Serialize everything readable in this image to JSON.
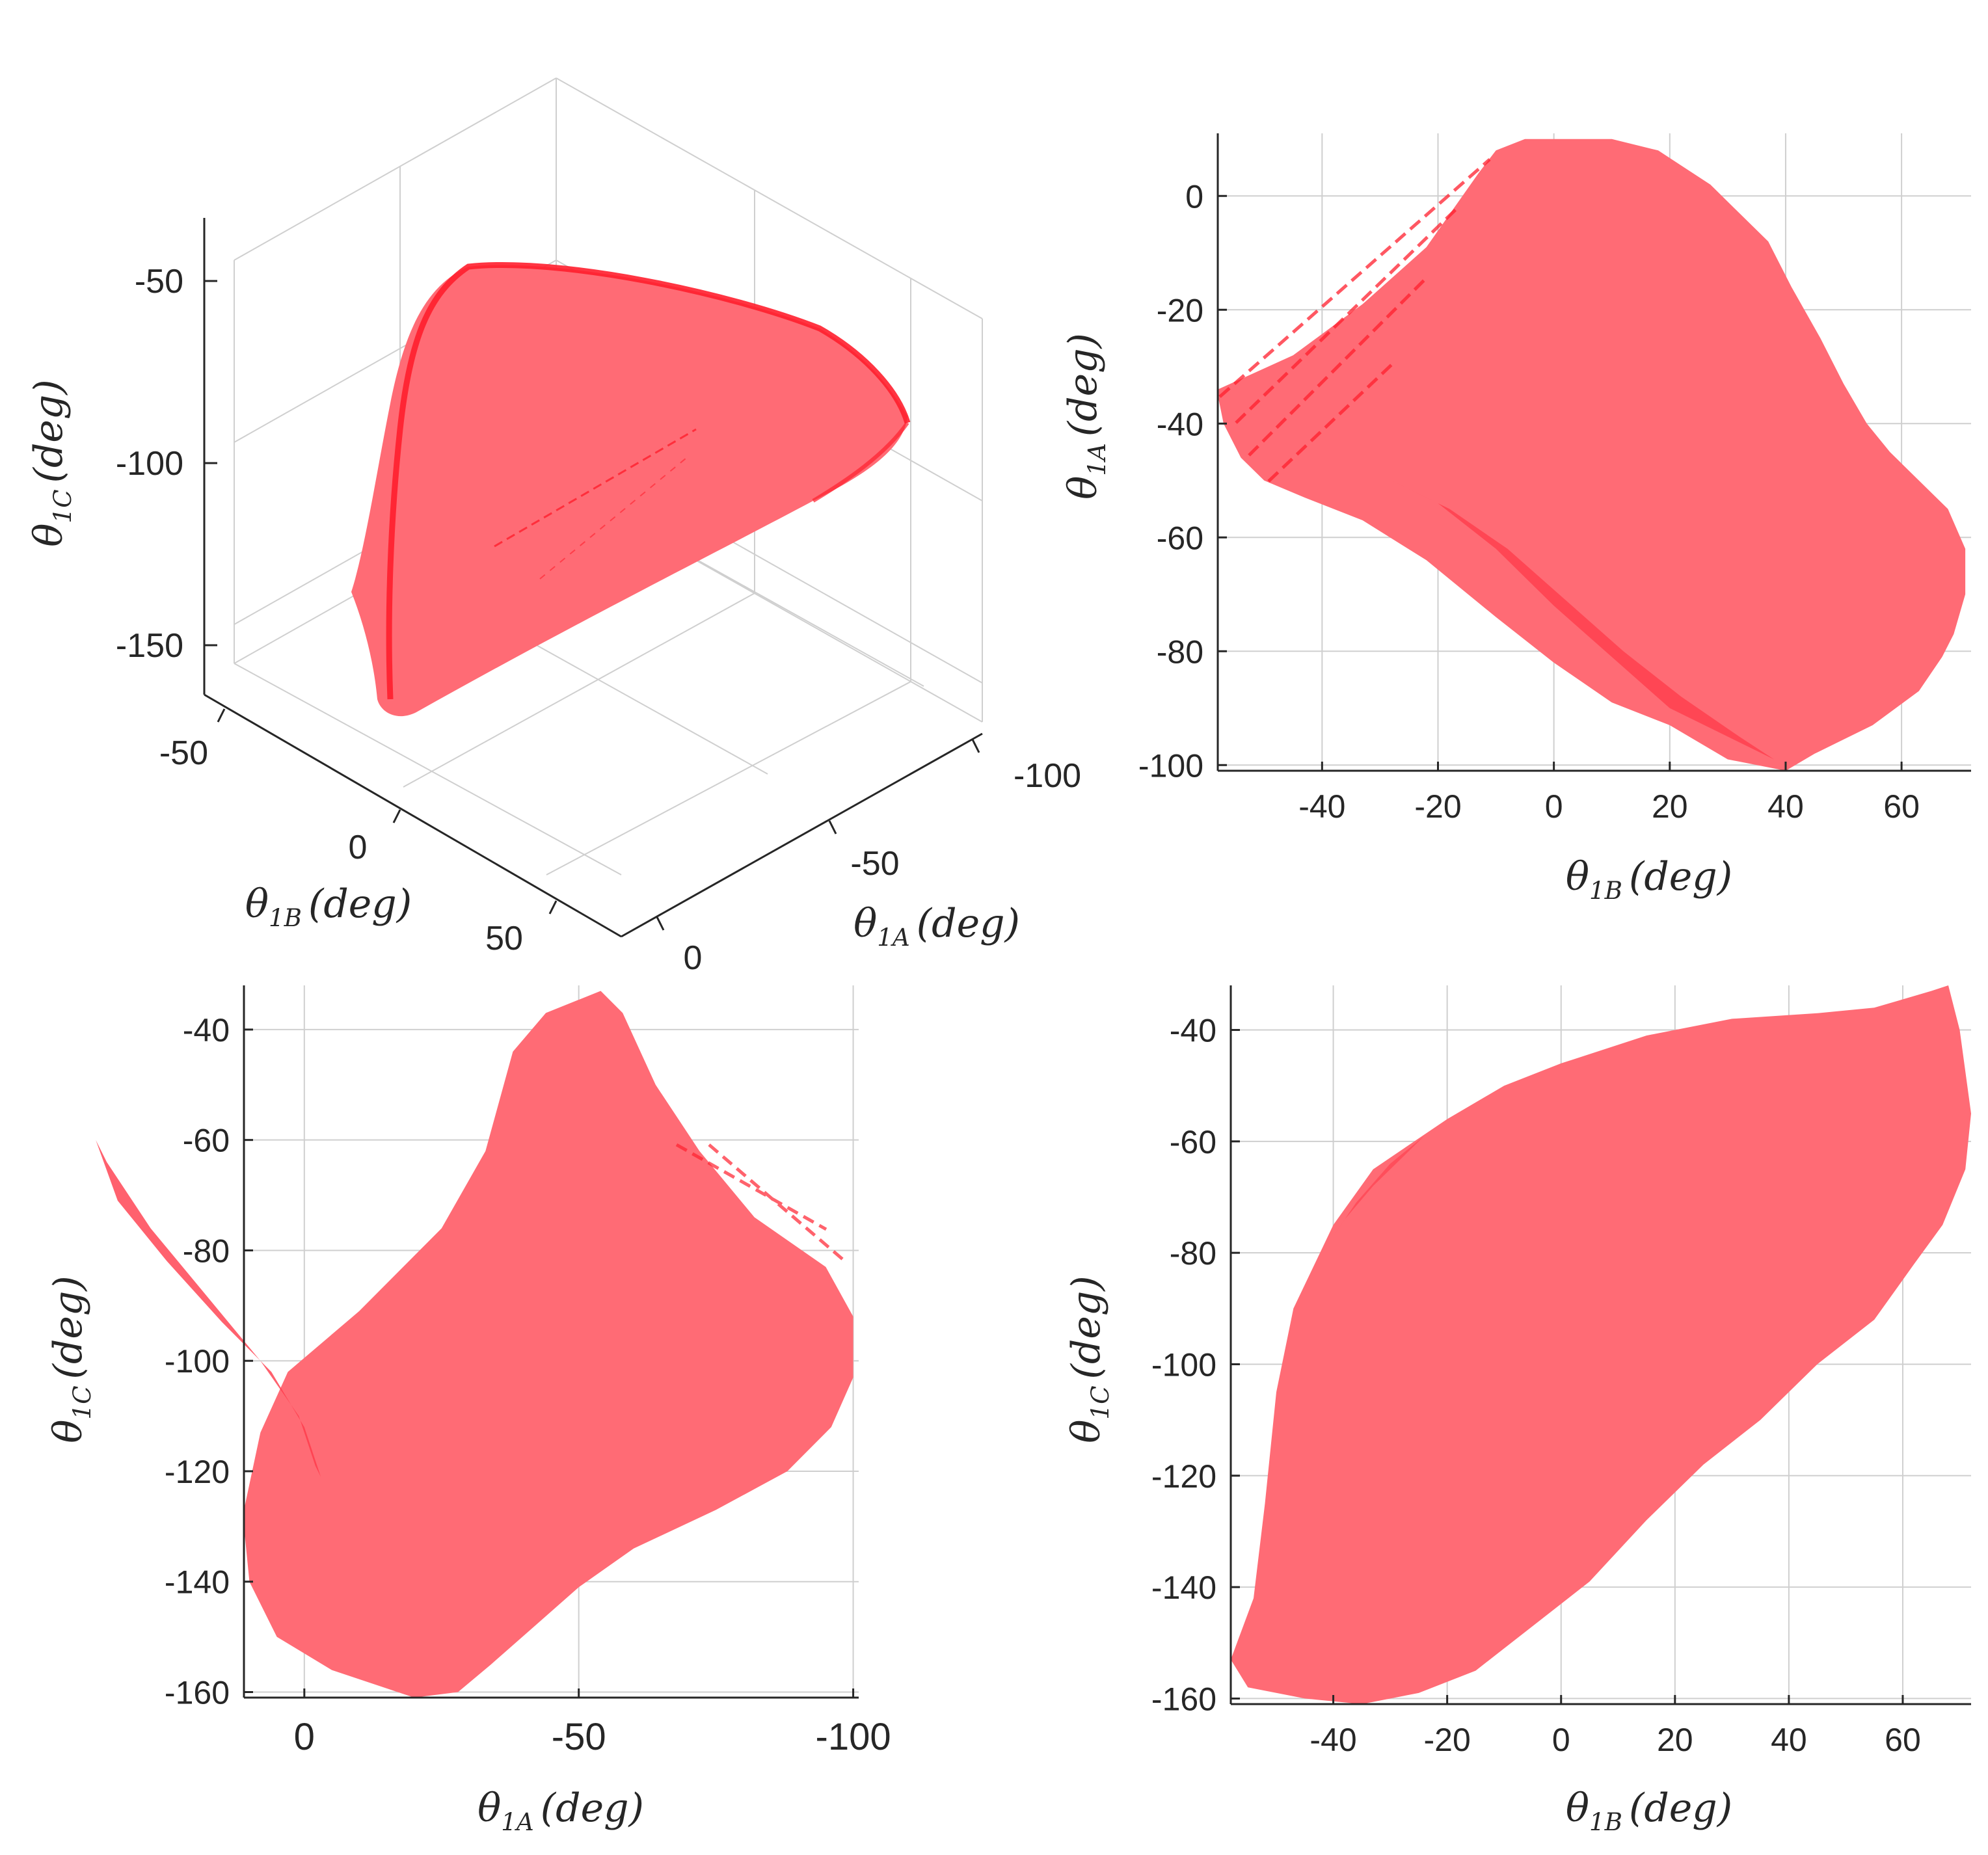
{
  "colors": {
    "region": "#ff6b75",
    "edge": "#ff1f2d",
    "grid": "#cfcfcf",
    "text": "#262626"
  },
  "chart_data": [
    {
      "id": "panel-3d",
      "type": "scatter",
      "view": "3d",
      "xlabel": "θ_1B (deg)",
      "xlabel_var": "θ",
      "xlabel_sub": "1B",
      "xlabel_unit": "(deg)",
      "ylabel": "θ_1A (deg)",
      "ylabel_var": "θ",
      "ylabel_sub": "1A",
      "ylabel_unit": "(deg)",
      "zlabel": "θ_1C (deg)",
      "zlabel_var": "θ",
      "zlabel_sub": "1C",
      "zlabel_unit": "(deg)",
      "xticks": [
        "-50",
        "0",
        "50"
      ],
      "yticks": [
        "0",
        "-50",
        "-100"
      ],
      "zticks": [
        "-50",
        "-100",
        "-150"
      ],
      "xlim": [
        -58,
        72
      ],
      "ylim": [
        -100,
        10
      ],
      "zlim": [
        -160,
        -30
      ],
      "grid": true
    },
    {
      "id": "panel-a-vs-b",
      "type": "area",
      "xlabel": "θ_1B (deg)",
      "x_var": "θ",
      "x_sub": "1B",
      "x_unit": "(deg)",
      "ylabel": "θ_1A (deg)",
      "y_var": "θ",
      "y_sub": "1A",
      "y_unit": "(deg)",
      "xlim": [
        -58,
        72
      ],
      "ylim": [
        -101,
        11
      ],
      "xticks": [
        -40,
        -20,
        0,
        20,
        40,
        60
      ],
      "yticks": [
        0,
        -20,
        -40,
        -60,
        -80,
        -100
      ],
      "grid": true,
      "boundary": [
        [
          -58,
          -34
        ],
        [
          -45,
          -28
        ],
        [
          -33,
          -19
        ],
        [
          -22,
          -9
        ],
        [
          -13,
          4
        ],
        [
          -10,
          8
        ],
        [
          -5,
          10
        ],
        [
          0,
          10
        ],
        [
          10,
          10
        ],
        [
          18,
          8
        ],
        [
          27,
          2
        ],
        [
          37,
          -8
        ],
        [
          41,
          -16
        ],
        [
          46,
          -25
        ],
        [
          50,
          -33
        ],
        [
          54,
          -40
        ],
        [
          58,
          -45
        ],
        [
          63,
          -50
        ],
        [
          68,
          -55
        ],
        [
          71,
          -62
        ],
        [
          71,
          -70
        ],
        [
          69,
          -77
        ],
        [
          67,
          -81
        ],
        [
          63,
          -87
        ],
        [
          55,
          -93
        ],
        [
          45,
          -98
        ],
        [
          40,
          -101
        ],
        [
          30,
          -99
        ],
        [
          20,
          -93
        ],
        [
          10,
          -89
        ],
        [
          0,
          -82
        ],
        [
          -10,
          -74
        ],
        [
          -22,
          -64
        ],
        [
          -33,
          -57
        ],
        [
          -43,
          -53
        ],
        [
          -50,
          -50
        ],
        [
          -54,
          -46
        ],
        [
          -57,
          -40
        ],
        [
          -58,
          -35
        ]
      ],
      "highlight": [
        [
          -28,
          -50
        ],
        [
          -20,
          -54
        ],
        [
          -10,
          -62
        ],
        [
          0,
          -72
        ],
        [
          10,
          -81
        ],
        [
          20,
          -90
        ],
        [
          30,
          -95
        ],
        [
          38,
          -99
        ],
        [
          32,
          -95
        ],
        [
          22,
          -88
        ],
        [
          12,
          -80
        ],
        [
          2,
          -71
        ],
        [
          -8,
          -62
        ],
        [
          -18,
          -55
        ],
        [
          -26,
          -51
        ]
      ]
    },
    {
      "id": "panel-c-vs-a",
      "type": "area",
      "xlabel": "θ_1A (deg)",
      "x_var": "θ",
      "x_sub": "1A",
      "x_unit": "(deg)",
      "ylabel": "θ_1C (deg)",
      "y_var": "θ",
      "y_sub": "1C",
      "y_unit": "(deg)",
      "xlim": [
        11,
        -101
      ],
      "ylim": [
        -161,
        -32
      ],
      "xticks": [
        0,
        -50,
        -100
      ],
      "xticklabels": [
        "0",
        "-50",
        "-100"
      ],
      "yticks": [
        -40,
        -60,
        -80,
        -100,
        -120,
        -140,
        -160
      ],
      "grid": true,
      "boundary": [
        [
          11,
          -127
        ],
        [
          8,
          -113
        ],
        [
          3,
          -102
        ],
        [
          -10,
          -91
        ],
        [
          -25,
          -76
        ],
        [
          -33,
          -62
        ],
        [
          -38,
          -44
        ],
        [
          -44,
          -37
        ],
        [
          -54,
          -33
        ],
        [
          -58,
          -37
        ],
        [
          -64,
          -50
        ],
        [
          -72,
          -62
        ],
        [
          -82,
          -74
        ],
        [
          -95,
          -83
        ],
        [
          -100,
          -92
        ],
        [
          -100,
          -103
        ],
        [
          -96,
          -112
        ],
        [
          -88,
          -120
        ],
        [
          -75,
          -127
        ],
        [
          -60,
          -134
        ],
        [
          -50,
          -141
        ],
        [
          -42,
          -148
        ],
        [
          -34,
          -155
        ],
        [
          -28,
          -160
        ],
        [
          -20,
          -161
        ],
        [
          -5,
          -156
        ],
        [
          5,
          -150
        ],
        [
          10,
          -140
        ],
        [
          11,
          -130
        ]
      ],
      "highlight": [
        [
          -3,
          -121
        ],
        [
          0,
          -112
        ],
        [
          6,
          -102
        ],
        [
          15,
          -93
        ],
        [
          25,
          -82
        ],
        [
          34,
          -71
        ],
        [
          38,
          -60
        ],
        [
          36,
          -64
        ],
        [
          28,
          -76
        ],
        [
          18,
          -88
        ],
        [
          8,
          -100
        ],
        [
          1,
          -110
        ],
        [
          -2,
          -119
        ]
      ]
    },
    {
      "id": "panel-c-vs-b",
      "type": "area",
      "xlabel": "θ_1B (deg)",
      "x_var": "θ",
      "x_sub": "1B",
      "x_unit": "(deg)",
      "ylabel": "θ_1C (deg)",
      "y_var": "θ",
      "y_sub": "1C",
      "y_unit": "(deg)",
      "xlim": [
        -58,
        72
      ],
      "ylim": [
        -161,
        -32
      ],
      "xticks": [
        -40,
        -20,
        0,
        20,
        40,
        60
      ],
      "yticks": [
        -40,
        -60,
        -80,
        -100,
        -120,
        -140,
        -160
      ],
      "grid": true,
      "boundary": [
        [
          -58,
          -153
        ],
        [
          -54,
          -142
        ],
        [
          -52,
          -125
        ],
        [
          -50,
          -105
        ],
        [
          -47,
          -90
        ],
        [
          -40,
          -75
        ],
        [
          -33,
          -65
        ],
        [
          -20,
          -56
        ],
        [
          -10,
          -50
        ],
        [
          0,
          -46
        ],
        [
          15,
          -41
        ],
        [
          30,
          -38
        ],
        [
          45,
          -37
        ],
        [
          55,
          -36
        ],
        [
          65,
          -33
        ],
        [
          68,
          -32
        ],
        [
          70,
          -40
        ],
        [
          72,
          -55
        ],
        [
          71,
          -65
        ],
        [
          67,
          -75
        ],
        [
          62,
          -82
        ],
        [
          55,
          -92
        ],
        [
          45,
          -100
        ],
        [
          35,
          -110
        ],
        [
          25,
          -118
        ],
        [
          15,
          -128
        ],
        [
          5,
          -139
        ],
        [
          -5,
          -147
        ],
        [
          -15,
          -155
        ],
        [
          -25,
          -159
        ],
        [
          -35,
          -161
        ],
        [
          -45,
          -160
        ],
        [
          -55,
          -158
        ]
      ],
      "highlight": [
        [
          -40,
          -77
        ],
        [
          -36,
          -71
        ],
        [
          -30,
          -64
        ],
        [
          -24,
          -59
        ],
        [
          -27,
          -62
        ],
        [
          -33,
          -68
        ],
        [
          -38,
          -74
        ]
      ]
    }
  ]
}
